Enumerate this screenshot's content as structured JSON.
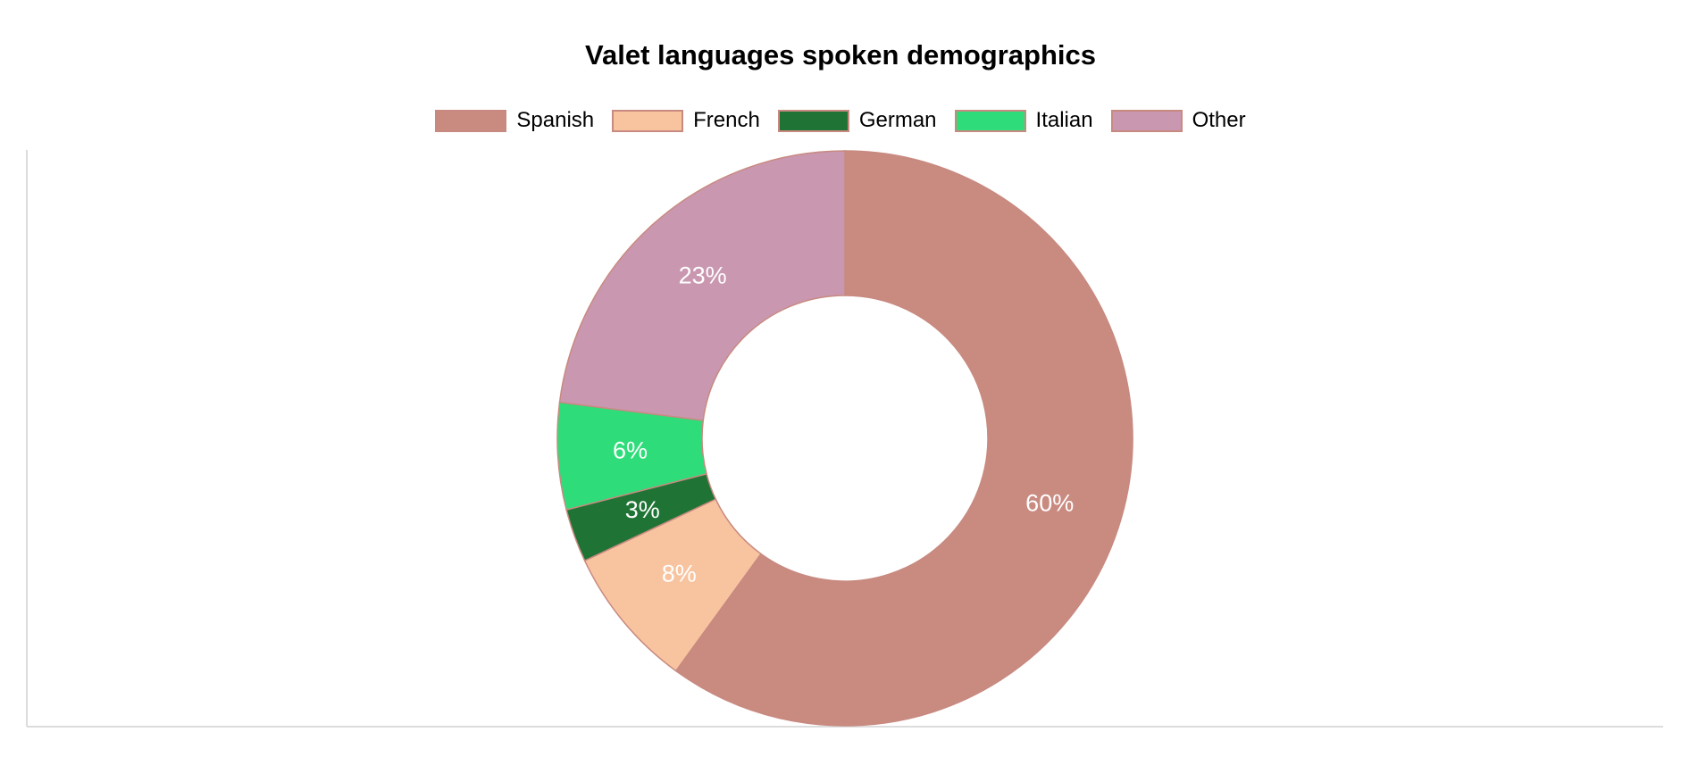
{
  "chart_data": {
    "type": "pie",
    "variant": "doughnut",
    "title": "Valet languages spoken demographics",
    "categories": [
      "Spanish",
      "French",
      "German",
      "Italian",
      "Other"
    ],
    "values": [
      60,
      8,
      3,
      6,
      23
    ],
    "value_labels": [
      "60%",
      "8%",
      "3%",
      "6%",
      "23%"
    ],
    "colors": [
      "#c98a80",
      "#f8c4a0",
      "#1f7435",
      "#2edd79",
      "#c997b0"
    ],
    "border_color": "#c88a80",
    "legend_position": "top",
    "start_angle": "top",
    "direction": "clockwise"
  }
}
